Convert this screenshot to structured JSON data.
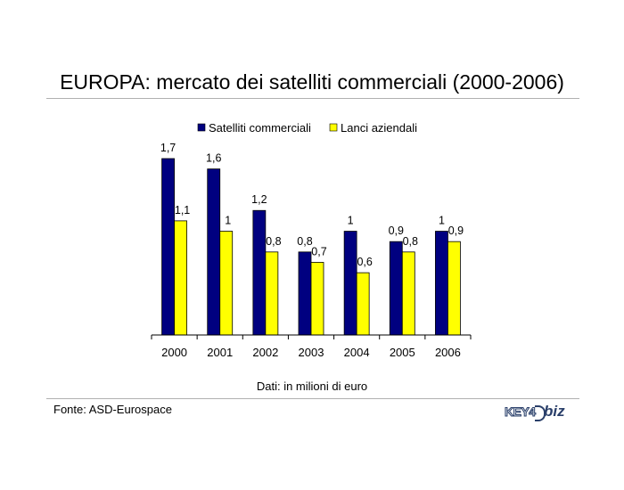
{
  "title": "EUROPA: mercato dei satelliti commerciali (2000-2006)",
  "units_note": "Dati: in milioni di euro",
  "source": "Fonte: ASD-Eurospace",
  "logo": {
    "part1": "KEY4",
    "part2": "biz"
  },
  "colors": {
    "series1": "#000080",
    "series2": "#ffff00"
  },
  "chart_data": {
    "type": "bar",
    "categories": [
      "2000",
      "2001",
      "2002",
      "2003",
      "2004",
      "2005",
      "2006"
    ],
    "series": [
      {
        "name": "Satelliti commerciali",
        "values": [
          1.7,
          1.6,
          1.2,
          0.8,
          1,
          0.9,
          1
        ],
        "labels": [
          "1,7",
          "1,6",
          "1,2",
          "0,8",
          "1",
          "0,9",
          "1"
        ]
      },
      {
        "name": "Lanci aziendali",
        "values": [
          1.1,
          1,
          0.8,
          0.7,
          0.6,
          0.8,
          0.9
        ],
        "labels": [
          "1,1",
          "1",
          "0,8",
          "0,7",
          "0,6",
          "0,8",
          "0,9"
        ]
      }
    ],
    "ylim": [
      0,
      1.7
    ],
    "legend": "top",
    "grid": false
  }
}
